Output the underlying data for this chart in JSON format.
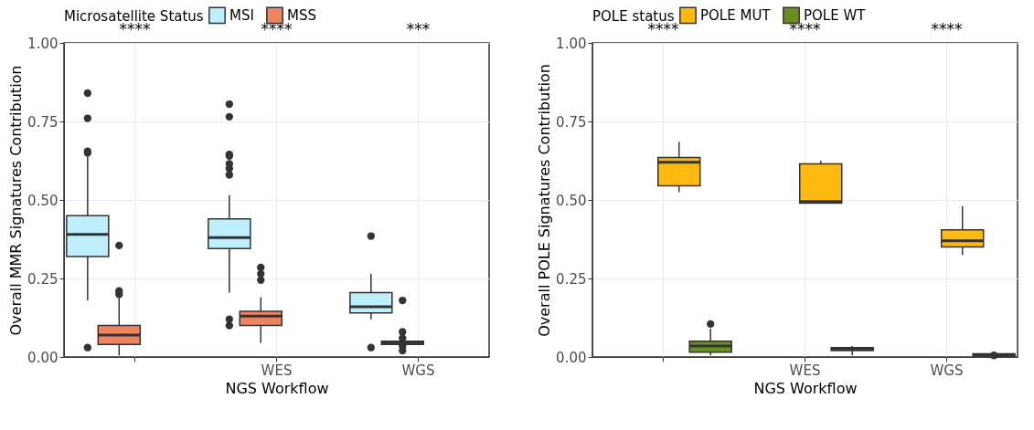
{
  "chart_data": [
    {
      "type": "box",
      "categories": [
        null,
        "WES",
        "WGS"
      ],
      "xlabel": "NGS Workflow",
      "ylabel": "Overall MMR Signatures Contribution",
      "legend_title": "Microsatellite Status",
      "legend": "top",
      "grid": true,
      "ylim": [
        0,
        1
      ],
      "yticks": [
        {
          "value": 0,
          "label": "0.00"
        },
        {
          "value": 0.25,
          "label": "0.25"
        },
        {
          "value": 0.5,
          "label": "0.50"
        },
        {
          "value": 0.75,
          "label": "0.75"
        },
        {
          "value": 1,
          "label": "1.00"
        }
      ],
      "annotations": [
        "****",
        "****",
        "***"
      ],
      "series": [
        {
          "name": "MSI",
          "color": "#bfeffc",
          "boxes": [
            {
              "low": 0.18,
              "q1": 0.32,
              "median": 0.39,
              "q3": 0.45,
              "high": 0.64,
              "outliers": [
                0.84,
                0.76,
                0.655,
                0.65,
                0.03
              ]
            },
            {
              "low": 0.205,
              "q1": 0.345,
              "median": 0.38,
              "q3": 0.44,
              "high": 0.515,
              "outliers": [
                0.805,
                0.765,
                0.645,
                0.64,
                0.615,
                0.6,
                0.58,
                0.12,
                0.1
              ]
            },
            {
              "low": 0.12,
              "q1": 0.14,
              "median": 0.16,
              "q3": 0.205,
              "high": 0.265,
              "outliers": [
                0.385,
                0.03
              ]
            }
          ]
        },
        {
          "name": "MSS",
          "color": "#ee8462",
          "boxes": [
            {
              "low": 0.005,
              "q1": 0.04,
              "median": 0.07,
              "q3": 0.1,
              "high": 0.19,
              "outliers": [
                0.355,
                0.21,
                0.2
              ]
            },
            {
              "low": 0.045,
              "q1": 0.1,
              "median": 0.13,
              "q3": 0.145,
              "high": 0.19,
              "outliers": [
                0.285,
                0.265,
                0.245
              ]
            },
            {
              "low": 0.04,
              "q1": 0.04,
              "median": 0.045,
              "q3": 0.05,
              "high": 0.05,
              "outliers": [
                0.18,
                0.08,
                0.06,
                0.035,
                0.02
              ]
            }
          ]
        }
      ]
    },
    {
      "type": "box",
      "categories": [
        null,
        "WES",
        "WGS"
      ],
      "xlabel": "NGS Workflow",
      "ylabel": "Overall POLE Signatures Contribution",
      "legend_title": "POLE status",
      "legend": "top",
      "grid": true,
      "ylim": [
        0,
        1
      ],
      "yticks": [
        {
          "value": 0,
          "label": "0.00"
        },
        {
          "value": 0.25,
          "label": "0.25"
        },
        {
          "value": 0.5,
          "label": "0.50"
        },
        {
          "value": 0.75,
          "label": "0.75"
        },
        {
          "value": 1,
          "label": "1.00"
        }
      ],
      "annotations": [
        "****",
        "****",
        "****"
      ],
      "series": [
        {
          "name": "POLE MUT",
          "color": "#ffb90f",
          "boxes": [
            {
              "low": 0.525,
              "q1": 0.545,
              "median": 0.62,
              "q3": 0.635,
              "high": 0.685
            },
            {
              "low": 0.49,
              "q1": 0.49,
              "median": 0.495,
              "q3": 0.615,
              "high": 0.625
            },
            {
              "low": 0.325,
              "q1": 0.35,
              "median": 0.37,
              "q3": 0.405,
              "high": 0.48
            }
          ]
        },
        {
          "name": "POLE WT",
          "color": "#6b8e23",
          "boxes": [
            {
              "low": 0.005,
              "q1": 0.015,
              "median": 0.035,
              "q3": 0.05,
              "high": 0.09,
              "outliers": [
                0.105
              ]
            },
            {
              "low": 0.005,
              "q1": 0.02,
              "median": 0.025,
              "q3": 0.03,
              "high": 0.035
            },
            {
              "low": 0,
              "q1": 0,
              "median": 0.005,
              "q3": 0.01,
              "high": 0.01,
              "outliers": [
                0.005
              ]
            }
          ]
        }
      ]
    }
  ]
}
